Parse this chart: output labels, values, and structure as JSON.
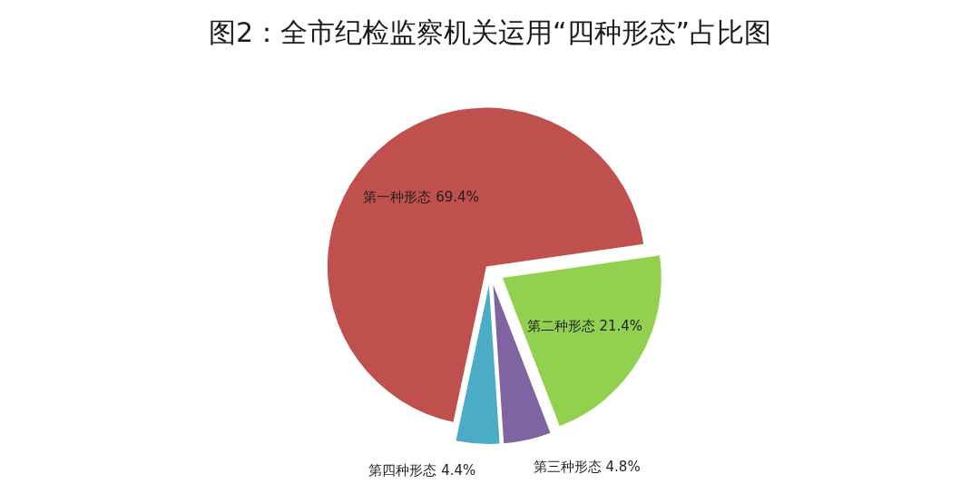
{
  "chart_data": {
    "type": "pie",
    "title": "图2：全市纪检监察机关运用“四种形态”占比图",
    "categories": [
      "第一种形态",
      "第二种形态",
      "第三种形态",
      "第四种形态"
    ],
    "values": [
      69.4,
      21.4,
      4.8,
      4.4
    ],
    "colors": [
      "#c0504d",
      "#92d050",
      "#8064a2",
      "#4bacc6"
    ],
    "value_labels": [
      "69.4%",
      "21.4%",
      "4.8%",
      "4.4%"
    ],
    "legend": false
  }
}
